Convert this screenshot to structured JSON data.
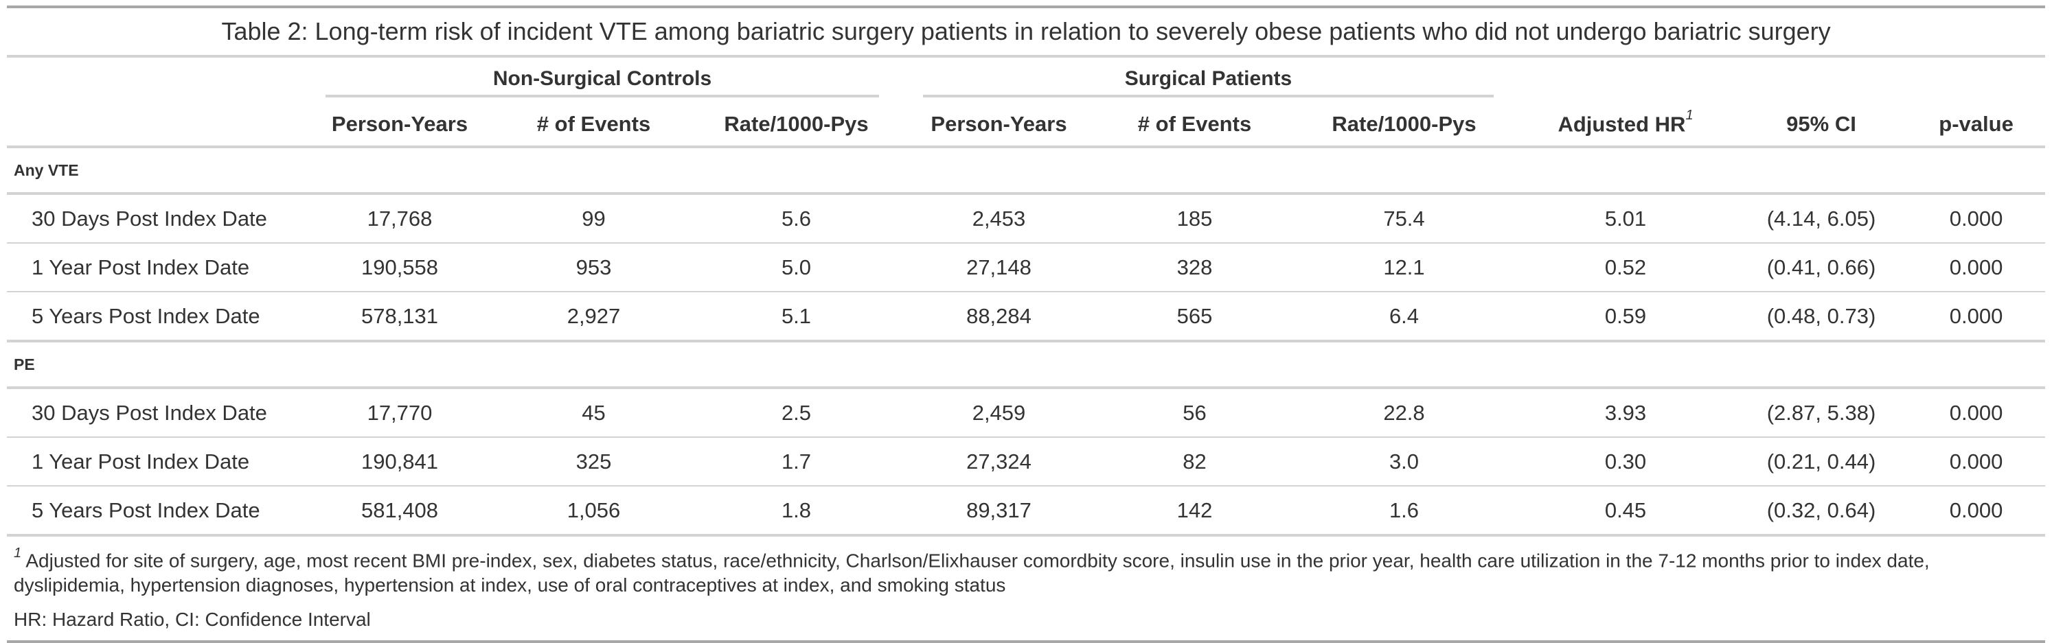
{
  "title": "Table 2: Long-term risk of incident VTE among bariatric surgery patients in relation to severely obese patients who did not undergo bariatric surgery",
  "spanners": {
    "non_surgical": "Non-Surgical Controls",
    "surgical": "Surgical Patients"
  },
  "columns": {
    "person_years": "Person-Years",
    "events": "# of Events",
    "rate": "Rate/1000-Pys",
    "adjusted_hr": "Adjusted HR",
    "adjusted_hr_mark": "1",
    "ci": "95% CI",
    "pvalue": "p-value"
  },
  "groups": [
    {
      "label": "Any VTE",
      "rows": [
        {
          "label": "30 Days Post Index Date",
          "py1": "17,768",
          "ev1": "99",
          "rate1": "5.6",
          "py2": "2,453",
          "ev2": "185",
          "rate2": "75.4",
          "hr": "5.01",
          "ci": "(4.14, 6.05)",
          "p": "0.000"
        },
        {
          "label": "1 Year Post Index Date",
          "py1": "190,558",
          "ev1": "953",
          "rate1": "5.0",
          "py2": "27,148",
          "ev2": "328",
          "rate2": "12.1",
          "hr": "0.52",
          "ci": "(0.41, 0.66)",
          "p": "0.000"
        },
        {
          "label": "5 Years Post Index Date",
          "py1": "578,131",
          "ev1": "2,927",
          "rate1": "5.1",
          "py2": "88,284",
          "ev2": "565",
          "rate2": "6.4",
          "hr": "0.59",
          "ci": "(0.48, 0.73)",
          "p": "0.000"
        }
      ]
    },
    {
      "label": "PE",
      "rows": [
        {
          "label": "30 Days Post Index Date",
          "py1": "17,770",
          "ev1": "45",
          "rate1": "2.5",
          "py2": "2,459",
          "ev2": "56",
          "rate2": "22.8",
          "hr": "3.93",
          "ci": "(2.87, 5.38)",
          "p": "0.000"
        },
        {
          "label": "1 Year Post Index Date",
          "py1": "190,841",
          "ev1": "325",
          "rate1": "1.7",
          "py2": "27,324",
          "ev2": "82",
          "rate2": "3.0",
          "hr": "0.30",
          "ci": "(0.21, 0.44)",
          "p": "0.000"
        },
        {
          "label": "5 Years Post Index Date",
          "py1": "581,408",
          "ev1": "1,056",
          "rate1": "1.8",
          "py2": "89,317",
          "ev2": "142",
          "rate2": "1.6",
          "hr": "0.45",
          "ci": "(0.32, 0.64)",
          "p": "0.000"
        }
      ]
    }
  ],
  "footnotes": {
    "mark": "1",
    "note1": "Adjusted for site of surgery, age, most recent BMI pre-index, sex, diabetes status, race/ethnicity, Charlson/Elixhauser comordbity score, insulin use in the prior year, health care utilization in the 7-12 months prior to index date, dyslipidemia, hypertension diagnoses, hypertension at index, use of oral contraceptives at index, and smoking status",
    "note2": "HR: Hazard Ratio, CI: Confidence Interval"
  }
}
